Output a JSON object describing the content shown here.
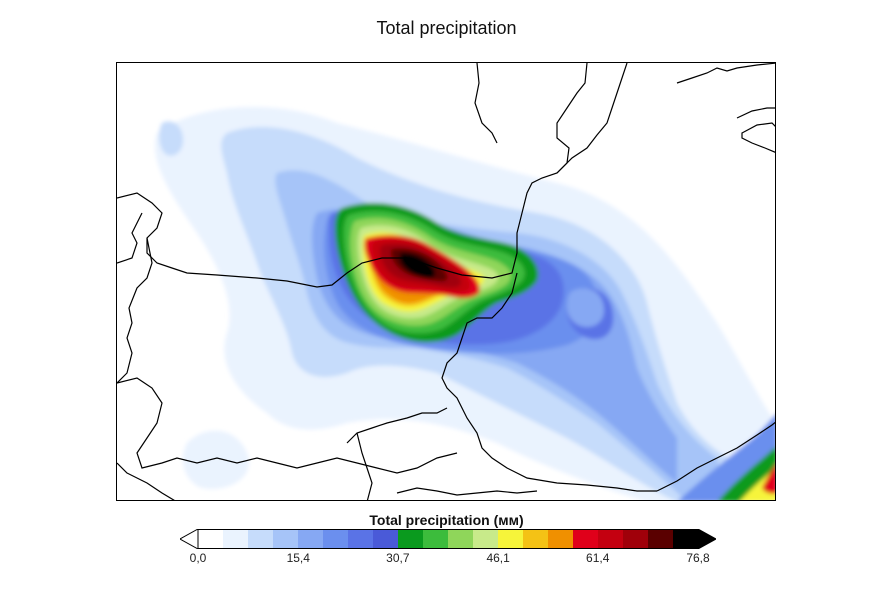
{
  "title": "Total precipitation",
  "colorbar": {
    "label": "Total precipitation (мм)",
    "tick_labels": [
      "0,0",
      "15,4",
      "30,7",
      "46,1",
      "61,4",
      "76,8"
    ],
    "tick_values": [
      0.0,
      15.4,
      30.7,
      46.1,
      61.4,
      76.8
    ],
    "min": 0.0,
    "max": 76.8,
    "extend": "both",
    "colors": [
      "#ffffff",
      "#eaf3fe",
      "#c6dcfb",
      "#a6c4f8",
      "#86a8f3",
      "#6b8fee",
      "#5a73e6",
      "#4a5ad8",
      "#0a9a1e",
      "#3cbc3c",
      "#8fd65a",
      "#c8ea8a",
      "#f6f43a",
      "#f4c215",
      "#f09000",
      "#e0001a",
      "#c40010",
      "#a0000a",
      "#5a0000",
      "#000000"
    ]
  },
  "map_colors": {
    "land_border": "#000000"
  }
}
